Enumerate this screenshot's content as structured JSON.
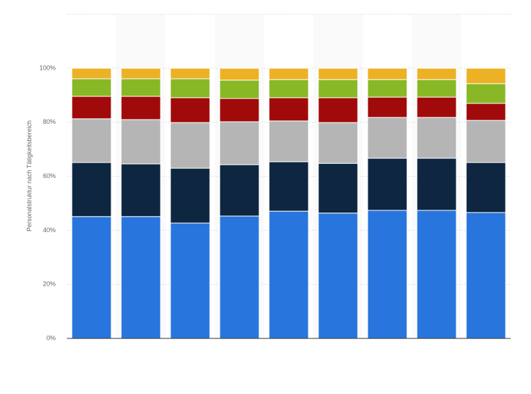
{
  "chart_data": {
    "type": "stacked-bar",
    "y_label": "Personalstruktur nach Tätigkeitsbereich",
    "categories": [
      null,
      null,
      null,
      null,
      null,
      null,
      null,
      null,
      null
    ],
    "series": [
      {
        "color": "#2876dd",
        "values": [
          45.1,
          45.1,
          42.7,
          45.3,
          47.1,
          46.4,
          47.4,
          47.4,
          46.6
        ]
      },
      {
        "color": "#0e2640",
        "values": [
          20.0,
          19.5,
          20.3,
          19.0,
          18.3,
          18.4,
          19.3,
          19.3,
          18.5
        ]
      },
      {
        "color": "#b5b5b5",
        "values": [
          16.2,
          16.4,
          16.9,
          15.9,
          15.1,
          15.1,
          15.1,
          15.1,
          15.6
        ]
      },
      {
        "color": "#a10a0a",
        "values": [
          8.3,
          8.6,
          9.2,
          8.6,
          8.6,
          9.2,
          7.5,
          7.5,
          6.3
        ]
      },
      {
        "color": "#88b825",
        "values": [
          6.5,
          6.5,
          7.0,
          6.8,
          6.7,
          6.7,
          6.5,
          6.5,
          7.3
        ]
      },
      {
        "color": "#ecb124",
        "values": [
          3.9,
          3.9,
          3.9,
          4.4,
          4.2,
          4.2,
          4.2,
          4.2,
          5.7
        ]
      }
    ],
    "ylim": [
      0,
      120
    ],
    "yticks": [
      {
        "value": 0,
        "label": "0%"
      },
      {
        "value": 20,
        "label": "20%"
      },
      {
        "value": 40,
        "label": "40%"
      },
      {
        "value": 60,
        "label": "60%"
      },
      {
        "value": 80,
        "label": "80%"
      },
      {
        "value": 100,
        "label": "100%"
      }
    ],
    "grid": true
  }
}
